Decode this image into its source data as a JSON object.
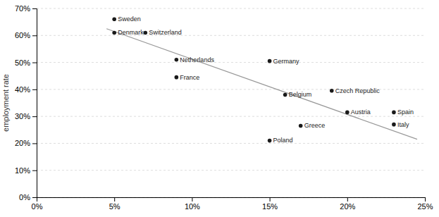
{
  "chart_data": {
    "type": "scatter",
    "ylabel": "employment rate",
    "grid": true,
    "xlim": [
      0.0,
      0.25
    ],
    "ylim": [
      0.0,
      0.7
    ],
    "xticks": [
      {
        "value": 0.0,
        "label": "0%"
      },
      {
        "value": 0.05,
        "label": "5%"
      },
      {
        "value": 0.1,
        "label": "10%"
      },
      {
        "value": 0.15,
        "label": "15%"
      },
      {
        "value": 0.2,
        "label": "20%"
      },
      {
        "value": 0.25,
        "label": "25%"
      }
    ],
    "yticks": [
      {
        "value": 0.0,
        "label": "0%"
      },
      {
        "value": 0.1,
        "label": "10%"
      },
      {
        "value": 0.2,
        "label": "20%"
      },
      {
        "value": 0.3,
        "label": "30%"
      },
      {
        "value": 0.4,
        "label": "40%"
      },
      {
        "value": 0.5,
        "label": "50%"
      },
      {
        "value": 0.6,
        "label": "60%"
      },
      {
        "value": 0.7,
        "label": "70%"
      }
    ],
    "series": [
      {
        "type": "scatter",
        "color": "#1a1a1a",
        "labels": [
          "Sweden",
          "Denmark",
          "Switzerland",
          "Netherlands",
          "France",
          "Germany",
          "Belgium",
          "Czech Republic",
          "Austria",
          "Greece",
          "Poland",
          "Spain",
          "Italy"
        ],
        "x": [
          0.05,
          0.05,
          0.07,
          0.09,
          0.09,
          0.15,
          0.16,
          0.19,
          0.2,
          0.17,
          0.15,
          0.23,
          0.23
        ],
        "values": [
          0.66,
          0.61,
          0.61,
          0.51,
          0.445,
          0.505,
          0.38,
          0.395,
          0.315,
          0.265,
          0.21,
          0.315,
          0.27
        ]
      },
      {
        "type": "line",
        "color": "#999999",
        "x": [
          0.045,
          0.245
        ],
        "values": [
          0.625,
          0.215
        ]
      }
    ]
  }
}
